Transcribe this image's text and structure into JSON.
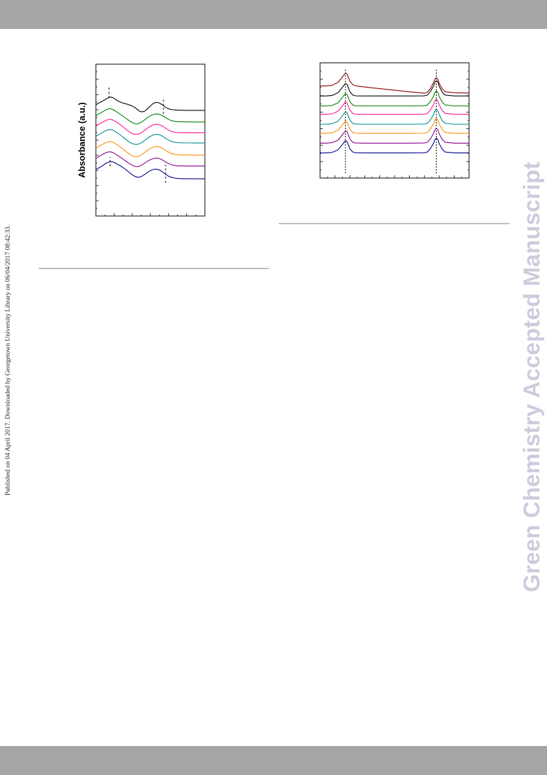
{
  "page": {
    "side_note": "Published on 04 April 2017. Downloaded by Georgetown University Library on 06/04/2017 08:42:33.",
    "watermark": "Green Chemistry Accepted Manuscript",
    "band_color": "#a6a6a6"
  },
  "chart_data": [
    {
      "type": "line",
      "title": "",
      "xlabel": "",
      "ylabel": "Absorbance (a.u.)",
      "x": [
        0,
        0.02,
        0.04,
        0.06,
        0.08,
        0.1,
        0.12,
        0.14,
        0.16,
        0.18,
        0.2,
        0.22,
        0.24,
        0.26,
        0.28,
        0.3,
        0.32,
        0.34,
        0.36,
        0.38,
        0.4,
        0.42,
        0.44,
        0.46,
        0.48,
        0.5,
        0.52,
        0.54,
        0.56,
        0.58,
        0.6,
        0.62,
        0.64,
        0.66,
        0.68,
        0.7,
        0.72,
        0.74,
        0.76,
        0.78,
        0.8,
        0.82,
        0.84,
        0.86,
        0.88,
        0.9,
        0.92,
        0.94,
        0.96,
        0.98,
        1
      ],
      "xlim": [
        0,
        1
      ],
      "ylim": [
        0,
        10
      ],
      "series": [
        {
          "color": "#000000",
          "values": [
            7.32,
            7.42,
            7.49,
            7.56,
            7.65,
            7.74,
            7.81,
            7.83,
            7.78,
            7.68,
            7.59,
            7.52,
            7.46,
            7.42,
            7.38,
            7.33,
            7.28,
            7.22,
            7.14,
            7.02,
            6.91,
            6.86,
            6.88,
            6.97,
            7.1,
            7.25,
            7.38,
            7.46,
            7.48,
            7.45,
            7.37,
            7.27,
            7.16,
            7.08,
            7.03,
            7.0,
            6.99,
            6.98,
            6.97,
            6.97,
            6.97,
            6.96,
            6.96,
            6.96,
            6.96,
            6.96,
            6.96,
            6.96,
            6.96,
            6.96,
            6.96
          ]
        },
        {
          "color": "#008000",
          "values": [
            6.6,
            6.7,
            6.78,
            6.86,
            6.94,
            7.02,
            7.06,
            7.06,
            7.0,
            6.91,
            6.81,
            6.72,
            6.62,
            6.52,
            6.42,
            6.31,
            6.21,
            6.13,
            6.08,
            6.07,
            6.11,
            6.19,
            6.29,
            6.4,
            6.51,
            6.6,
            6.67,
            6.71,
            6.72,
            6.7,
            6.65,
            6.57,
            6.48,
            6.39,
            6.32,
            6.27,
            6.24,
            6.22,
            6.21,
            6.21,
            6.2,
            6.2,
            6.2,
            6.2,
            6.19,
            6.19,
            6.19,
            6.19,
            6.19,
            6.19,
            6.19
          ]
        },
        {
          "color": "#ff1493",
          "values": [
            5.93,
            6.02,
            6.1,
            6.17,
            6.25,
            6.32,
            6.36,
            6.36,
            6.31,
            6.22,
            6.13,
            6.03,
            5.92,
            5.81,
            5.69,
            5.58,
            5.48,
            5.41,
            5.38,
            5.38,
            5.42,
            5.5,
            5.6,
            5.71,
            5.82,
            5.91,
            5.98,
            6.03,
            6.04,
            6.02,
            5.96,
            5.88,
            5.78,
            5.69,
            5.61,
            5.56,
            5.52,
            5.5,
            5.49,
            5.49,
            5.48,
            5.48,
            5.48,
            5.48,
            5.48,
            5.48,
            5.48,
            5.48,
            5.48,
            5.48,
            5.48
          ]
        },
        {
          "color": "#008b8b",
          "values": [
            5.25,
            5.34,
            5.42,
            5.5,
            5.58,
            5.65,
            5.69,
            5.69,
            5.64,
            5.55,
            5.46,
            5.36,
            5.25,
            5.14,
            5.02,
            4.91,
            4.82,
            4.75,
            4.72,
            4.72,
            4.76,
            4.84,
            4.94,
            5.05,
            5.16,
            5.25,
            5.32,
            5.37,
            5.38,
            5.36,
            5.3,
            5.22,
            5.12,
            5.03,
            4.95,
            4.9,
            4.86,
            4.84,
            4.83,
            4.82,
            4.82,
            4.82,
            4.82,
            4.82,
            4.82,
            4.81,
            4.81,
            4.81,
            4.81,
            4.81,
            4.81
          ]
        },
        {
          "color": "#ff8c00",
          "values": [
            4.46,
            4.56,
            4.64,
            4.72,
            4.8,
            4.86,
            4.9,
            4.9,
            4.85,
            4.76,
            4.67,
            4.57,
            4.46,
            4.35,
            4.23,
            4.12,
            4.02,
            3.95,
            3.92,
            3.92,
            3.96,
            4.04,
            4.14,
            4.25,
            4.36,
            4.45,
            4.52,
            4.57,
            4.58,
            4.56,
            4.5,
            4.42,
            4.32,
            4.23,
            4.15,
            4.1,
            4.06,
            4.04,
            4.03,
            4.02,
            4.02,
            4.02,
            4.02,
            4.02,
            4.02,
            4.01,
            4.01,
            4.01,
            4.01,
            4.01,
            4.01
          ]
        },
        {
          "color": "#8b008b",
          "values": [
            3.79,
            3.89,
            3.97,
            4.05,
            4.13,
            4.19,
            4.23,
            4.22,
            4.17,
            4.08,
            3.99,
            3.89,
            3.79,
            3.69,
            3.59,
            3.49,
            3.4,
            3.32,
            3.27,
            3.25,
            3.28,
            3.35,
            3.44,
            3.54,
            3.63,
            3.71,
            3.77,
            3.81,
            3.82,
            3.79,
            3.73,
            3.65,
            3.56,
            3.48,
            3.41,
            3.36,
            3.33,
            3.31,
            3.3,
            3.3,
            3.3,
            3.3,
            3.29,
            3.29,
            3.29,
            3.29,
            3.29,
            3.29,
            3.29,
            3.29,
            3.29
          ]
        },
        {
          "color": "#00008b",
          "values": [
            3.06,
            3.15,
            3.22,
            3.31,
            3.41,
            3.5,
            3.56,
            3.58,
            3.55,
            3.48,
            3.4,
            3.32,
            3.23,
            3.13,
            3.03,
            2.91,
            2.79,
            2.68,
            2.6,
            2.56,
            2.56,
            2.61,
            2.7,
            2.8,
            2.9,
            2.99,
            3.05,
            3.08,
            3.08,
            3.04,
            2.96,
            2.86,
            2.75,
            2.65,
            2.58,
            2.53,
            2.5,
            2.48,
            2.47,
            2.46,
            2.46,
            2.46,
            2.45,
            2.45,
            2.45,
            2.45,
            2.45,
            2.45,
            2.45,
            2.45,
            2.45
          ]
        }
      ],
      "peak_markers": [
        {
          "x": 0.12,
          "y0": 7.78,
          "y1": 8.48
        },
        {
          "x": 0.62,
          "y0": 6.72,
          "y1": 7.66
        },
        {
          "x": 0.13,
          "y0": 3.27,
          "y1": 3.87
        },
        {
          "x": 0.64,
          "y0": 2.18,
          "y1": 3.37
        }
      ]
    },
    {
      "type": "line",
      "title": "",
      "xlabel": "",
      "ylabel": "",
      "x": [
        0,
        0.04,
        0.08,
        0.12,
        0.14,
        0.16,
        0.17,
        0.18,
        0.19,
        0.2,
        0.22,
        0.24,
        0.3,
        0.4,
        0.5,
        0.6,
        0.7,
        0.72,
        0.74,
        0.76,
        0.77,
        0.78,
        0.79,
        0.8,
        0.82,
        0.84,
        0.9,
        1
      ],
      "xlim": [
        0,
        1
      ],
      "ylim": [
        0,
        10
      ],
      "series": [
        {
          "color": "#8b0000",
          "values": [
            7.99,
            7.99,
            8.05,
            8.3,
            8.6,
            8.95,
            9.1,
            9.05,
            8.75,
            8.4,
            8.1,
            8.0,
            7.9,
            7.76,
            7.62,
            7.48,
            7.36,
            7.45,
            7.75,
            8.25,
            8.55,
            8.7,
            8.6,
            8.2,
            7.75,
            7.5,
            7.4,
            7.38
          ]
        },
        {
          "color": "#000000",
          "values": [
            7.12,
            7.12,
            7.16,
            7.4,
            7.7,
            8.05,
            8.2,
            8.15,
            7.85,
            7.5,
            7.2,
            7.13,
            7.12,
            7.12,
            7.12,
            7.12,
            7.13,
            7.2,
            7.5,
            7.95,
            8.3,
            8.45,
            8.35,
            7.95,
            7.45,
            7.2,
            7.12,
            7.12
          ]
        },
        {
          "color": "#008000",
          "values": [
            6.26,
            6.26,
            6.3,
            6.52,
            6.82,
            7.17,
            7.32,
            7.27,
            6.97,
            6.62,
            6.33,
            6.27,
            6.26,
            6.26,
            6.26,
            6.26,
            6.27,
            6.34,
            6.62,
            7.06,
            7.4,
            7.55,
            7.45,
            7.06,
            6.58,
            6.34,
            6.26,
            6.26
          ]
        },
        {
          "color": "#ff1493",
          "values": [
            5.53,
            5.53,
            5.57,
            5.79,
            6.09,
            6.44,
            6.59,
            6.54,
            6.24,
            5.89,
            5.6,
            5.54,
            5.53,
            5.53,
            5.53,
            5.53,
            5.54,
            5.61,
            5.89,
            6.33,
            6.67,
            6.82,
            6.72,
            6.33,
            5.85,
            5.61,
            5.53,
            5.53
          ]
        },
        {
          "color": "#008b8b",
          "values": [
            4.67,
            4.67,
            4.71,
            4.93,
            5.23,
            5.58,
            5.73,
            5.68,
            5.38,
            5.03,
            4.74,
            4.68,
            4.67,
            4.67,
            4.67,
            4.67,
            4.68,
            4.75,
            5.03,
            5.47,
            5.81,
            5.96,
            5.86,
            5.47,
            4.99,
            4.75,
            4.67,
            4.67
          ]
        },
        {
          "color": "#ff8c00",
          "values": [
            3.88,
            3.88,
            3.92,
            4.14,
            4.44,
            4.79,
            4.94,
            4.89,
            4.59,
            4.24,
            3.95,
            3.89,
            3.88,
            3.88,
            3.88,
            3.88,
            3.89,
            3.96,
            4.24,
            4.68,
            5.02,
            5.17,
            5.07,
            4.68,
            4.2,
            3.96,
            3.88,
            3.88
          ]
        },
        {
          "color": "#8b008b",
          "values": [
            3.03,
            3.03,
            3.07,
            3.29,
            3.59,
            3.94,
            4.09,
            4.04,
            3.74,
            3.39,
            3.1,
            3.04,
            3.03,
            3.03,
            3.03,
            3.03,
            3.04,
            3.11,
            3.39,
            3.83,
            4.17,
            4.32,
            4.22,
            3.83,
            3.35,
            3.11,
            3.03,
            3.03
          ]
        },
        {
          "color": "#00008b",
          "values": [
            2.18,
            2.18,
            2.22,
            2.44,
            2.74,
            3.09,
            3.24,
            3.19,
            2.89,
            2.54,
            2.25,
            2.19,
            2.18,
            2.18,
            2.18,
            2.18,
            2.19,
            2.26,
            2.54,
            2.98,
            3.32,
            3.47,
            3.37,
            2.98,
            2.5,
            2.26,
            2.18,
            2.18
          ]
        }
      ],
      "reference_lines": [
        {
          "x": 0.17,
          "y0": 0.3,
          "y1": 9.4
        },
        {
          "x": 0.78,
          "y0": 0.3,
          "y1": 9.4
        }
      ]
    }
  ]
}
